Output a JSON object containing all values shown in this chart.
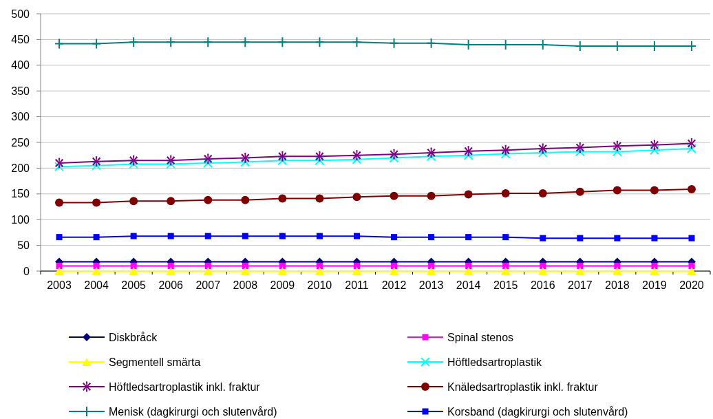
{
  "chart_data": {
    "type": "line",
    "categories": [
      "2003",
      "2004",
      "2005",
      "2006",
      "2007",
      "2008",
      "2009",
      "2010",
      "2011",
      "2012",
      "2013",
      "2014",
      "2015",
      "2016",
      "2017",
      "2018",
      "2019",
      "2020"
    ],
    "series": [
      {
        "name": "Diskbråck",
        "color": "#000080",
        "marker": "diamond",
        "values": [
          18,
          18,
          18,
          18,
          18,
          18,
          18,
          18,
          18,
          18,
          18,
          18,
          18,
          18,
          18,
          18,
          18,
          18
        ]
      },
      {
        "name": "Spinal stenos",
        "color": "#ff00ff",
        "marker": "square",
        "values": [
          10,
          10,
          10,
          10,
          10,
          10,
          10,
          10,
          10,
          10,
          10,
          10,
          10,
          10,
          10,
          10,
          10,
          10
        ]
      },
      {
        "name": "Segmentell smärta",
        "color": "#ffff00",
        "marker": "triangle",
        "values": [
          0,
          0,
          0,
          0,
          0,
          0,
          0,
          0,
          0,
          0,
          0,
          0,
          0,
          0,
          0,
          0,
          0,
          0
        ]
      },
      {
        "name": "Höftledsartroplastik",
        "color": "#00ffff",
        "marker": "cross",
        "values": [
          203,
          205,
          208,
          208,
          210,
          212,
          215,
          215,
          217,
          220,
          223,
          225,
          228,
          230,
          232,
          232,
          235,
          238
        ]
      },
      {
        "name": "Höftledsartroplastik inkl. fraktur",
        "color": "#800080",
        "marker": "star",
        "values": [
          210,
          213,
          215,
          215,
          218,
          220,
          223,
          223,
          225,
          227,
          230,
          233,
          235,
          238,
          240,
          243,
          245,
          248
        ]
      },
      {
        "name": "Knäledsartroplastik inkl. fraktur",
        "color": "#800000",
        "marker": "circle",
        "values": [
          133,
          133,
          136,
          136,
          138,
          138,
          141,
          141,
          144,
          146,
          146,
          149,
          151,
          151,
          154,
          157,
          157,
          159
        ]
      },
      {
        "name": "Menisk (dagkirurgi och slutenvård)",
        "color": "#008080",
        "marker": "plus",
        "values": [
          442,
          442,
          445,
          445,
          445,
          445,
          445,
          445,
          445,
          443,
          443,
          440,
          440,
          440,
          437,
          437,
          437,
          437
        ]
      },
      {
        "name": "Korsband (dagkirurgi och slutenvård)",
        "color": "#0000ff",
        "marker": "square",
        "values": [
          66,
          66,
          68,
          68,
          68,
          68,
          68,
          68,
          68,
          66,
          66,
          66,
          66,
          64,
          64,
          64,
          64,
          64
        ]
      }
    ],
    "ylim": [
      0,
      500
    ],
    "yticks": [
      0,
      50,
      100,
      150,
      200,
      250,
      300,
      350,
      400,
      450,
      500
    ],
    "grid": "y",
    "legend": "bottom"
  }
}
